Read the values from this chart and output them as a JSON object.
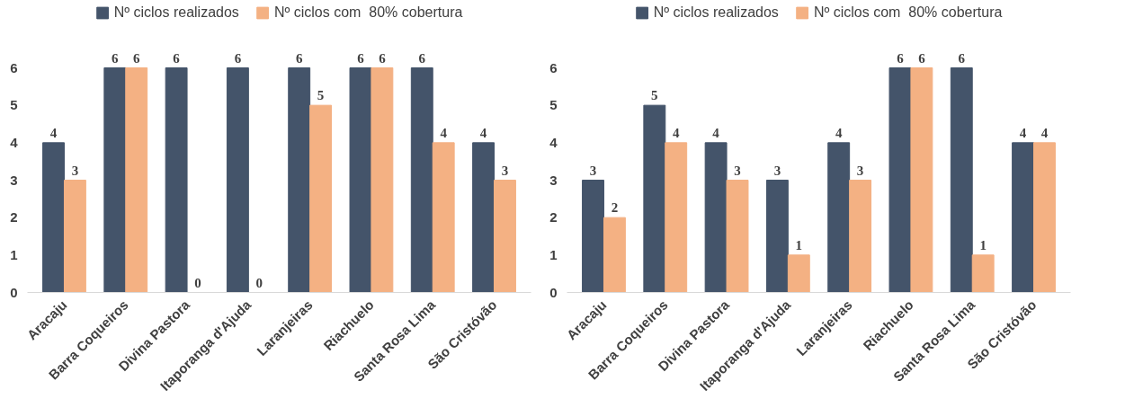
{
  "chart_data": [
    {
      "type": "bar",
      "categories": [
        "Aracaju",
        "Barra Coqueiros",
        "Divina Pastora",
        "Itaporanga d'Ajuda",
        "Laranjeiras",
        "Riachuelo",
        "Santa Rosa Lima",
        "São Cristóvão"
      ],
      "series": [
        {
          "name": "Nº ciclos realizados",
          "color": "#44546a",
          "values": [
            4,
            6,
            6,
            6,
            6,
            6,
            6,
            4
          ]
        },
        {
          "name": "Nº ciclos com  80% cobertura",
          "color": "#f4b183",
          "values": [
            3,
            6,
            0,
            0,
            5,
            6,
            4,
            3
          ]
        }
      ],
      "ylim": [
        0,
        6
      ],
      "yticks": [
        0,
        1,
        2,
        3,
        4,
        5,
        6
      ],
      "data_labels": true,
      "legend": "top",
      "grid": false
    },
    {
      "type": "bar",
      "categories": [
        "Aracaju",
        "Barra Coqueiros",
        "Divina Pastora",
        "Itaporanga d'Ajuda",
        "Laranjeiras",
        "Riachuelo",
        "Santa Rosa Lima",
        "São Cristóvão"
      ],
      "series": [
        {
          "name": "Nº ciclos realizados",
          "color": "#44546a",
          "values": [
            3,
            5,
            4,
            3,
            4,
            6,
            6,
            4
          ]
        },
        {
          "name": "Nº ciclos com  80% cobertura",
          "color": "#f4b183",
          "values": [
            2,
            4,
            3,
            1,
            3,
            6,
            1,
            4
          ]
        }
      ],
      "ylim": [
        0,
        6
      ],
      "yticks": [
        0,
        1,
        2,
        3,
        4,
        5,
        6
      ],
      "data_labels": true,
      "legend": "top",
      "grid": false
    }
  ]
}
